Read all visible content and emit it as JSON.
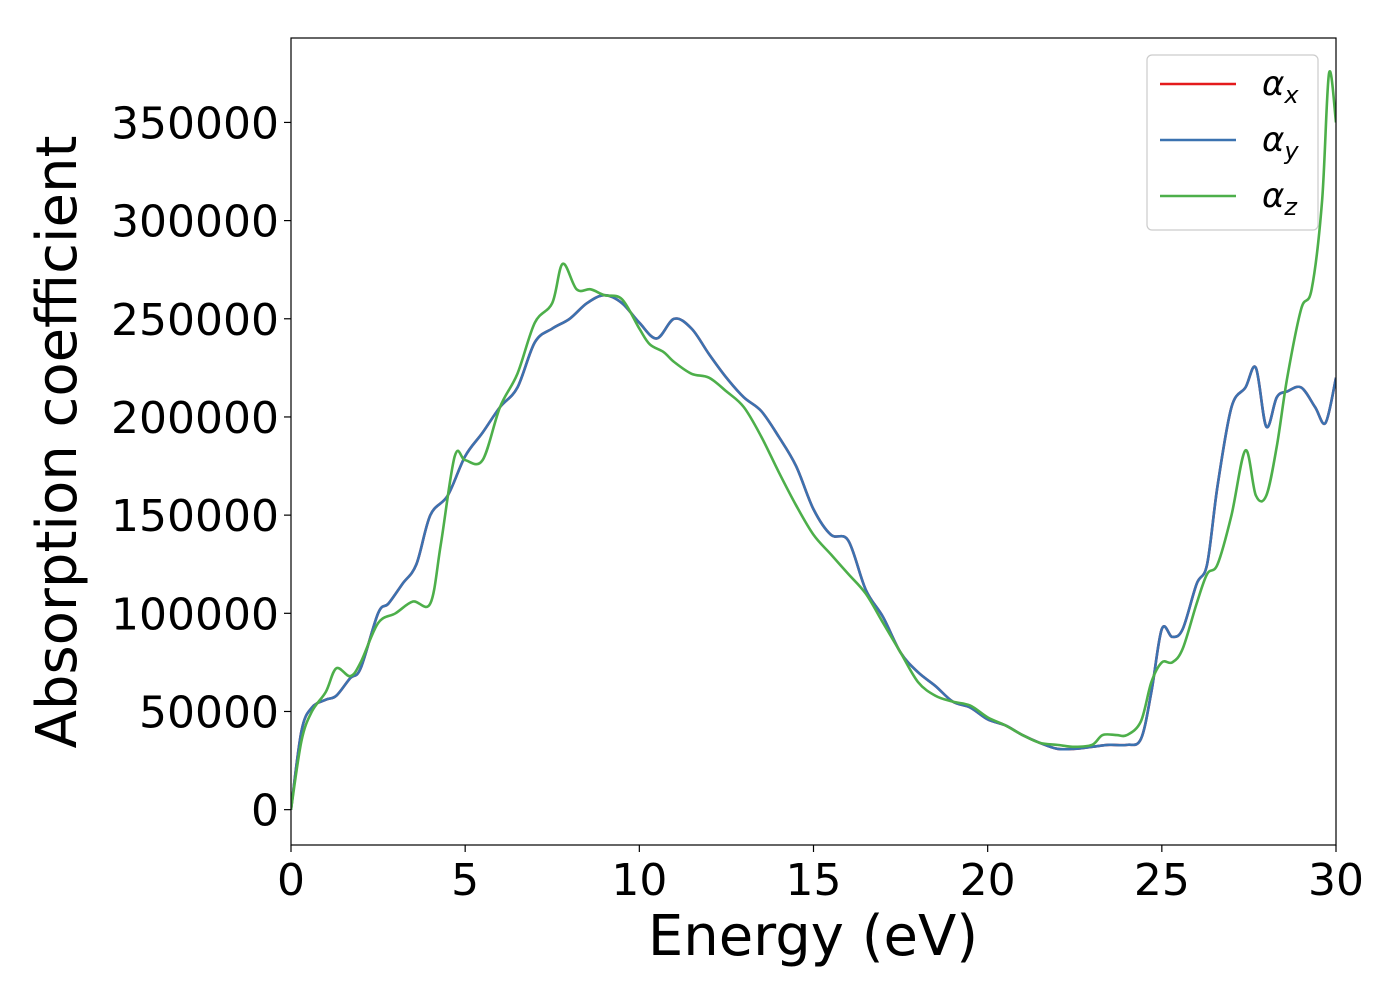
{
  "chart_data": {
    "type": "line",
    "xlabel": "Energy (eV)",
    "ylabel": "Absorption coefficient",
    "xlim": [
      0,
      30
    ],
    "ylim": [
      -18000,
      393000
    ],
    "xticks": [
      "0",
      "5",
      "10",
      "15",
      "20",
      "25",
      "30"
    ],
    "yticks": [
      "0",
      "50000",
      "100000",
      "150000",
      "200000",
      "250000",
      "300000",
      "350000"
    ],
    "grid": false,
    "legend_position": "top-right",
    "series": [
      {
        "name": "αx",
        "symbol": "α",
        "subscript": "x",
        "color": "#e41a1c",
        "x": [
          0,
          0.3,
          0.6,
          1,
          1.3,
          1.7,
          2,
          2.5,
          2.8,
          3.2,
          3.6,
          4,
          4.5,
          5,
          5.5,
          6,
          6.5,
          7,
          7.5,
          8,
          8.5,
          9,
          9.5,
          10,
          10.5,
          11,
          11.5,
          12,
          12.5,
          13,
          13.5,
          14,
          14.5,
          15,
          15.5,
          16,
          16.5,
          17,
          17.5,
          18,
          18.5,
          19,
          19.5,
          20,
          20.5,
          21,
          21.5,
          22,
          22.5,
          23,
          23.5,
          24,
          24.4,
          24.7,
          25,
          25.3,
          25.6,
          26,
          26.3,
          26.6,
          27,
          27.4,
          27.7,
          28,
          28.3,
          28.6,
          29,
          29.4,
          29.7,
          30
        ],
        "y": [
          0,
          40000,
          52000,
          56000,
          58000,
          67000,
          72000,
          100000,
          105000,
          115000,
          125000,
          150000,
          160000,
          180000,
          192000,
          205000,
          215000,
          238000,
          245000,
          250000,
          258000,
          262000,
          258000,
          248000,
          240000,
          250000,
          245000,
          232000,
          220000,
          210000,
          203000,
          190000,
          175000,
          153000,
          140000,
          137000,
          112000,
          98000,
          80000,
          70000,
          63000,
          55000,
          52000,
          46000,
          43000,
          38000,
          34000,
          31000,
          31000,
          32000,
          33000,
          33000,
          36000,
          60000,
          92000,
          88000,
          92000,
          115000,
          125000,
          165000,
          205000,
          215000,
          225000,
          195000,
          210000,
          213000,
          215000,
          205000,
          197000,
          220000
        ]
      },
      {
        "name": "αy",
        "symbol": "α",
        "subscript": "y",
        "color": "#3b72b0",
        "x": [
          0,
          0.3,
          0.6,
          1,
          1.3,
          1.7,
          2,
          2.5,
          2.8,
          3.2,
          3.6,
          4,
          4.5,
          5,
          5.5,
          6,
          6.5,
          7,
          7.5,
          8,
          8.5,
          9,
          9.5,
          10,
          10.5,
          11,
          11.5,
          12,
          12.5,
          13,
          13.5,
          14,
          14.5,
          15,
          15.5,
          16,
          16.5,
          17,
          17.5,
          18,
          18.5,
          19,
          19.5,
          20,
          20.5,
          21,
          21.5,
          22,
          22.5,
          23,
          23.5,
          24,
          24.4,
          24.7,
          25,
          25.3,
          25.6,
          26,
          26.3,
          26.6,
          27,
          27.4,
          27.7,
          28,
          28.3,
          28.6,
          29,
          29.4,
          29.7,
          30
        ],
        "y": [
          0,
          40000,
          52000,
          56000,
          58000,
          67000,
          72000,
          100000,
          105000,
          115000,
          125000,
          150000,
          160000,
          180000,
          192000,
          205000,
          215000,
          238000,
          245000,
          250000,
          258000,
          262000,
          258000,
          248000,
          240000,
          250000,
          245000,
          232000,
          220000,
          210000,
          203000,
          190000,
          175000,
          153000,
          140000,
          137000,
          112000,
          98000,
          80000,
          70000,
          63000,
          55000,
          52000,
          46000,
          43000,
          38000,
          34000,
          31000,
          31000,
          32000,
          33000,
          33000,
          36000,
          60000,
          92000,
          88000,
          92000,
          115000,
          125000,
          165000,
          205000,
          215000,
          225000,
          195000,
          210000,
          213000,
          215000,
          205000,
          197000,
          220000
        ]
      },
      {
        "name": "αz",
        "symbol": "α",
        "subscript": "z",
        "color": "#4daf4a",
        "x": [
          0,
          0.3,
          0.6,
          1,
          1.3,
          1.7,
          2,
          2.5,
          3,
          3.5,
          4,
          4.3,
          4.7,
          5,
          5.5,
          6,
          6.5,
          7,
          7.5,
          7.8,
          8.2,
          8.6,
          9,
          9.5,
          10,
          10.3,
          10.7,
          11,
          11.5,
          12,
          12.5,
          13,
          13.5,
          14,
          14.5,
          15,
          15.5,
          16,
          16.5,
          17,
          17.5,
          18,
          18.5,
          19,
          19.5,
          20,
          20.5,
          21,
          21.5,
          22,
          22.5,
          23,
          23.3,
          23.7,
          24,
          24.4,
          24.7,
          25,
          25.3,
          25.6,
          26,
          26.3,
          26.6,
          27,
          27.4,
          27.7,
          28,
          28.3,
          28.6,
          29,
          29.3,
          29.6,
          29.8,
          30
        ],
        "y": [
          0,
          35000,
          50000,
          60000,
          72000,
          68000,
          75000,
          95000,
          100000,
          106000,
          105000,
          135000,
          180000,
          178000,
          178000,
          205000,
          222000,
          248000,
          258000,
          278000,
          265000,
          265000,
          262000,
          260000,
          245000,
          237000,
          233000,
          228000,
          222000,
          220000,
          213000,
          205000,
          190000,
          172000,
          155000,
          140000,
          130000,
          120000,
          110000,
          95000,
          80000,
          65000,
          58000,
          55000,
          53000,
          47000,
          43000,
          38000,
          34000,
          33000,
          32000,
          33000,
          38000,
          38000,
          38000,
          45000,
          65000,
          75000,
          75000,
          82000,
          105000,
          120000,
          125000,
          150000,
          183000,
          160000,
          160000,
          185000,
          220000,
          255000,
          265000,
          310000,
          375000,
          350000
        ]
      }
    ]
  }
}
